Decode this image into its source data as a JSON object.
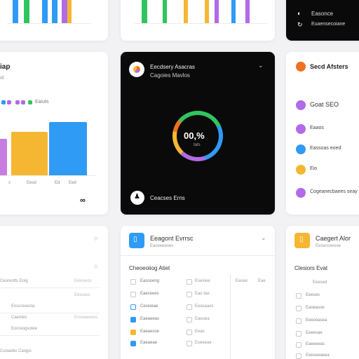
{
  "colors": {
    "blue": "#2f9bf5",
    "green": "#30c460",
    "yellow": "#f5b731",
    "purple": "#b26be6",
    "orange": "#f07020",
    "black": "#0a0a0a"
  },
  "left_panel": {
    "title": "iap",
    "subtitle": "id",
    "legend_label": "Eaiuts",
    "tick_labels": [
      "",
      "s",
      "Eesd",
      "Ed",
      "Eed"
    ]
  },
  "center_card": {
    "title": "Eecdsery Asacras",
    "subtitle": "Cagoies Mavlos",
    "progress_value": "00,%",
    "progress_sub": "tats",
    "footer_label": "Ceacses Erns"
  },
  "right_top_card": {
    "line1": "Easonce",
    "line2": "Euaensecoiane"
  },
  "right_list_card": {
    "title": "Secd Afsters",
    "items": [
      {
        "label": "Goat SEO",
        "icon": "spiral-icon"
      },
      {
        "label": "Eaaos",
        "icon": "circle-icon"
      },
      {
        "label": "Eassoas eoed",
        "icon": "circle-icon"
      },
      {
        "label": "Eio",
        "icon": "circle-icon"
      },
      {
        "label": "Cogeanecbaees seay",
        "icon": "spiral-icon"
      }
    ]
  },
  "bottom_left": {
    "rows": [
      "",
      "Ceoreotts Eoig",
      "",
      "Enscreoesta",
      "Caeotes",
      "Eocreogsotee",
      "Cunaebo Caogis"
    ],
    "right_values": [
      "",
      "",
      "Eeisoeos",
      "Eessass",
      "Ecoeaeeess"
    ]
  },
  "bottom_center": {
    "header_title": "Eeagont Evrrsc",
    "header_subtitle": "Eaceeeanes",
    "section_title": "Cheoeoiiog Atiet",
    "col1": [
      "Easooeng",
      "Eaeceees",
      "Cesioeae",
      "Eaeaeeas",
      "Eaeaesoe",
      "Eaeaeae"
    ],
    "col2": [
      "Eseioee",
      "Eao tae",
      "Eeasaaes",
      "Eaeuea",
      "Eeas",
      "Eseeeae"
    ],
    "col3": [
      "Easee",
      "",
      "",
      "",
      "",
      ""
    ],
    "col4": [
      "Eae",
      "",
      "",
      "",
      "",
      ""
    ]
  },
  "bottom_right": {
    "header_title": "Caegert Alor",
    "header_subtitle": "Eesecceesoe",
    "section_title": "Clesiors Evat",
    "section_sub": "Eeesed",
    "items": [
      "Eeeses",
      "Eaoeasse",
      "Eeeooasea",
      "Eeeesae",
      "Eaeeeeas",
      "Eeeseeaeea"
    ]
  }
}
